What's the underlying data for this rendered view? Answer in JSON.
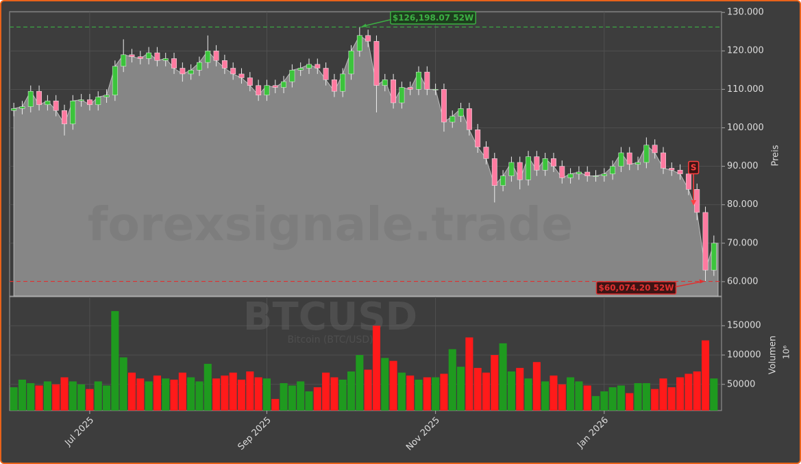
{
  "chart_data": {
    "type": "candlestick",
    "watermark": "forexsignale.trade",
    "symbol": "BTCUSD",
    "symbol_name": "Bitcoin (BTC/USD)",
    "ylabel": "Preis",
    "y2label": "Volumen",
    "y2_offset": "10⁶",
    "signal_label": "S",
    "categories": [
      null,
      null,
      null,
      null,
      null,
      null,
      null,
      null,
      null,
      "Jul 2025",
      null,
      null,
      null,
      null,
      null,
      null,
      null,
      null,
      null,
      null,
      null,
      null,
      null,
      null,
      null,
      null,
      null,
      null,
      null,
      null,
      "Sep 2025",
      null,
      null,
      null,
      null,
      null,
      null,
      null,
      null,
      null,
      null,
      null,
      null,
      null,
      null,
      null,
      null,
      null,
      null,
      null,
      "Nov 2025",
      null,
      null,
      null,
      null,
      null,
      null,
      null,
      null,
      null,
      null,
      null,
      null,
      null,
      null,
      null,
      null,
      null,
      null,
      null,
      "Jan 2026",
      null,
      null,
      null,
      null,
      null,
      null,
      null,
      null,
      null,
      null,
      null,
      null,
      null
    ],
    "open": [
      104500,
      105000,
      105500,
      109500,
      106000,
      107000,
      104500,
      101000,
      107000,
      107300,
      106000,
      108000,
      108500,
      116000,
      119000,
      118500,
      118000,
      119500,
      117500,
      118000,
      115500,
      114000,
      115000,
      117000,
      120000,
      117500,
      115500,
      114000,
      113000,
      111000,
      108500,
      111000,
      110500,
      112000,
      115000,
      115500,
      116500,
      115500,
      112500,
      109500,
      114000,
      120000,
      124000,
      122500,
      111000,
      112500,
      106500,
      110500,
      110000,
      114500,
      110000,
      110000,
      101500,
      103000,
      105000,
      99500,
      95000,
      92000,
      85000,
      87500,
      91000,
      86500,
      92500,
      89000,
      92000,
      90000,
      87000,
      88000,
      88500,
      87500,
      87500,
      88000,
      90000,
      93500,
      90500,
      91000,
      95500,
      93500,
      89500,
      89000,
      88000,
      84000,
      78000,
      63000
    ],
    "high": [
      106500,
      107000,
      111000,
      111000,
      108500,
      108500,
      106000,
      108500,
      108800,
      108800,
      109500,
      110000,
      117500,
      123000,
      120500,
      120000,
      121000,
      121000,
      119500,
      119500,
      117000,
      116500,
      118500,
      124000,
      121500,
      119000,
      117000,
      115500,
      114500,
      112500,
      112500,
      112500,
      113500,
      116500,
      117000,
      118000,
      118000,
      117000,
      114000,
      115500,
      121500,
      126198.07,
      125500,
      124000,
      114000,
      114000,
      112000,
      112000,
      116000,
      116000,
      111500,
      111500,
      104500,
      106500,
      106500,
      101000,
      96500,
      93500,
      89000,
      92500,
      92500,
      94000,
      94000,
      93500,
      93500,
      91500,
      89500,
      90000,
      90000,
      89000,
      89500,
      91500,
      95000,
      95000,
      92500,
      97500,
      97000,
      95000,
      91000,
      90500,
      89500,
      85500,
      79500,
      72000
    ],
    "low": [
      103000,
      103500,
      104000,
      104500,
      104500,
      103000,
      98000,
      99500,
      105500,
      104500,
      104500,
      106500,
      107000,
      114500,
      117000,
      116500,
      116500,
      116000,
      116000,
      114000,
      112000,
      112500,
      113500,
      115500,
      116000,
      114000,
      112500,
      111500,
      109500,
      107000,
      107000,
      109000,
      109000,
      110500,
      113500,
      114000,
      114000,
      111000,
      108000,
      108000,
      112500,
      118500,
      121000,
      104000,
      109500,
      105000,
      105000,
      108500,
      108500,
      108500,
      108500,
      99000,
      100000,
      101500,
      98000,
      93500,
      90500,
      80600,
      83500,
      86000,
      84000,
      85000,
      87500,
      87500,
      88500,
      85500,
      85500,
      86500,
      86000,
      86000,
      86000,
      86500,
      88500,
      89000,
      89000,
      89500,
      92000,
      88000,
      87500,
      86500,
      82500,
      76000,
      60074.2,
      61500
    ],
    "close": [
      105000,
      105500,
      109500,
      106000,
      107000,
      104500,
      101000,
      107000,
      107300,
      106000,
      108000,
      108500,
      116000,
      119000,
      118500,
      118000,
      119500,
      117500,
      118000,
      115500,
      114000,
      115000,
      117000,
      120000,
      117500,
      115500,
      114000,
      113000,
      111000,
      108500,
      111000,
      110500,
      112000,
      115000,
      115500,
      116500,
      115500,
      112500,
      109500,
      114000,
      120000,
      124000,
      122500,
      111000,
      112500,
      106500,
      110500,
      110000,
      114500,
      110000,
      110000,
      101500,
      103000,
      105000,
      99500,
      95000,
      92000,
      85000,
      87500,
      91000,
      86500,
      92500,
      89000,
      92000,
      90000,
      87000,
      88000,
      88500,
      87500,
      87500,
      88000,
      90000,
      93500,
      90500,
      91000,
      95500,
      93500,
      89500,
      89000,
      88000,
      84000,
      78000,
      63000,
      70000
    ],
    "volume": [
      45000,
      58000,
      52000,
      48000,
      55000,
      50000,
      62000,
      55000,
      50000,
      42000,
      55000,
      48000,
      175000,
      96000,
      70000,
      60000,
      55000,
      65000,
      60000,
      58000,
      70000,
      62000,
      55000,
      85000,
      60000,
      65000,
      70000,
      58000,
      72000,
      62000,
      60000,
      25000,
      52000,
      48000,
      55000,
      38000,
      45000,
      70000,
      62000,
      58000,
      72000,
      100000,
      75000,
      150000,
      95000,
      90000,
      70000,
      65000,
      58000,
      62000,
      62000,
      68000,
      110000,
      80000,
      130000,
      78000,
      70000,
      100000,
      120000,
      72000,
      78000,
      60000,
      88000,
      55000,
      65000,
      50000,
      62000,
      55000,
      48000,
      30000,
      38000,
      45000,
      48000,
      35000,
      52000,
      52000,
      42000,
      60000,
      45000,
      62000,
      68000,
      72000,
      125000,
      60000
    ],
    "up_color": "#3cc43c",
    "down_color": "#ff7aa0",
    "volume_up_color": "#1f9a1f",
    "volume_down_color": "#ff1a1a",
    "area_color": "#868686",
    "ylim": [
      56250,
      130200
    ],
    "yticks": [
      {
        "value": 60000,
        "label": "60.000"
      },
      {
        "value": 70000,
        "label": "70.000"
      },
      {
        "value": 80000,
        "label": "80.000"
      },
      {
        "value": 90000,
        "label": "90.000"
      },
      {
        "value": 100000,
        "label": "100.000"
      },
      {
        "value": 110000,
        "label": "110.000"
      },
      {
        "value": 120000,
        "label": "120.000"
      },
      {
        "value": 130000,
        "label": "130.000"
      }
    ],
    "y2lim": [
      5300,
      199400
    ],
    "y2ticks": [
      50000,
      100000,
      150000
    ],
    "high_52w": {
      "value": 126198.07,
      "label": "$126,198.07 52W",
      "color": "#3cb043"
    },
    "low_52w": {
      "value": 60074.2,
      "label": "$60,074.20 52W",
      "color": "#e03030"
    },
    "grid": true
  }
}
